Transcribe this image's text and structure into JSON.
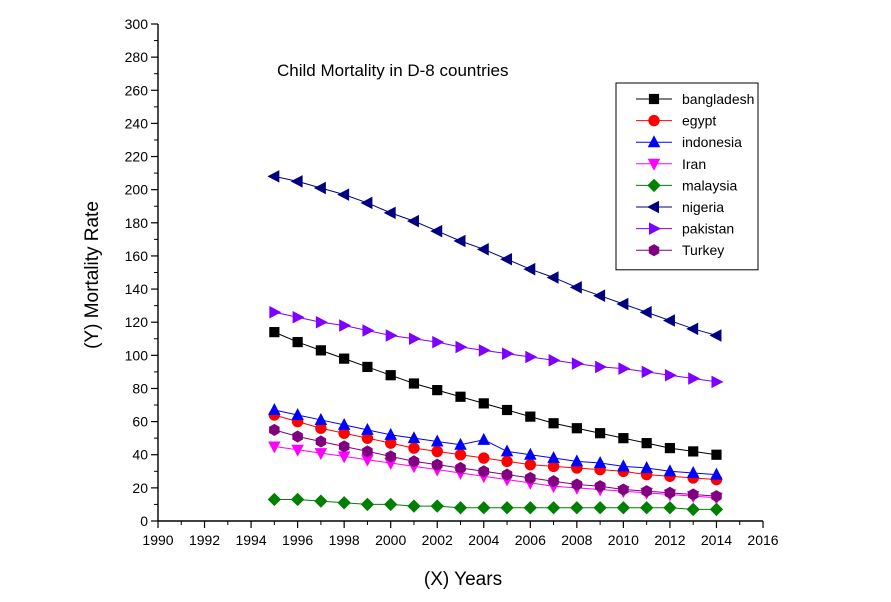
{
  "chart_data": {
    "type": "line",
    "title": "Child Mortality in D-8 countries",
    "xlabel": "(X) Years",
    "ylabel": "(Y) Mortality Rate",
    "xlim": [
      1990,
      2016
    ],
    "ylim": [
      0,
      300
    ],
    "x_ticks": [
      1990,
      1992,
      1994,
      1996,
      1998,
      2000,
      2002,
      2004,
      2006,
      2008,
      2010,
      2012,
      2014,
      2016
    ],
    "y_ticks": [
      0,
      20,
      40,
      60,
      80,
      100,
      120,
      140,
      160,
      180,
      200,
      220,
      240,
      260,
      280,
      300
    ],
    "grid": false,
    "legend_position": "top-right",
    "x": [
      1995,
      1996,
      1997,
      1998,
      1999,
      2000,
      2001,
      2002,
      2003,
      2004,
      2005,
      2006,
      2007,
      2008,
      2009,
      2010,
      2011,
      2012,
      2013,
      2014
    ],
    "series": [
      {
        "name": "bangladesh",
        "color": "#000000",
        "marker": "square",
        "values": [
          114,
          108,
          103,
          98,
          93,
          88,
          83,
          79,
          75,
          71,
          67,
          63,
          59,
          56,
          53,
          50,
          47,
          44,
          42,
          40
        ]
      },
      {
        "name": "egypt",
        "color": "#ff0000",
        "marker": "circle",
        "values": [
          64,
          60,
          56,
          53,
          50,
          47,
          44,
          42,
          40,
          38,
          36,
          34,
          33,
          32,
          31,
          30,
          28,
          27,
          26,
          25
        ]
      },
      {
        "name": "indonesia",
        "color": "#0000ff",
        "marker": "triangle-up",
        "values": [
          67,
          64,
          61,
          58,
          55,
          52,
          50,
          48,
          46,
          49,
          42,
          40,
          38,
          36,
          35,
          33,
          32,
          30,
          29,
          28
        ]
      },
      {
        "name": "Iran",
        "color": "#ff00ff",
        "marker": "triangle-down",
        "values": [
          45,
          43,
          41,
          39,
          37,
          35,
          33,
          31,
          29,
          27,
          25,
          23,
          21,
          20,
          19,
          18,
          17,
          16,
          15,
          14
        ]
      },
      {
        "name": "malaysia",
        "color": "#008000",
        "marker": "diamond",
        "values": [
          13,
          13,
          12,
          11,
          10,
          10,
          9,
          9,
          8,
          8,
          8,
          8,
          8,
          8,
          8,
          8,
          8,
          8,
          7,
          7
        ]
      },
      {
        "name": "nigeria",
        "color": "#000080",
        "marker": "triangle-left",
        "values": [
          208,
          205,
          201,
          197,
          192,
          186,
          181,
          175,
          169,
          164,
          158,
          152,
          147,
          141,
          136,
          131,
          126,
          121,
          116,
          112
        ]
      },
      {
        "name": "pakistan",
        "color": "#8000ff",
        "marker": "triangle-right",
        "values": [
          126,
          123,
          120,
          118,
          115,
          112,
          110,
          108,
          105,
          103,
          101,
          99,
          97,
          95,
          93,
          92,
          90,
          88,
          86,
          84
        ]
      },
      {
        "name": "Turkey",
        "color": "#800080",
        "marker": "hexagon",
        "values": [
          55,
          51,
          48,
          45,
          42,
          39,
          36,
          34,
          32,
          30,
          28,
          26,
          24,
          22,
          21,
          19,
          18,
          17,
          16,
          15
        ]
      }
    ]
  }
}
